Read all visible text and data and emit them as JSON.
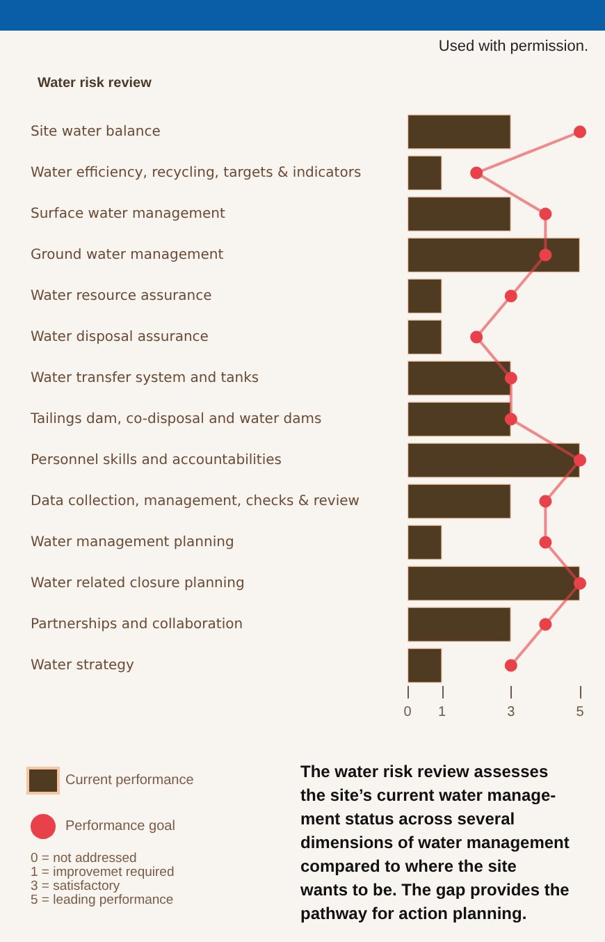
{
  "chart_data": {
    "type": "bar",
    "orientation": "horizontal",
    "title": "Water risk review",
    "categories": [
      "Site water balance",
      "Water efficiency, recycling, targets & indicators",
      "Surface water management",
      "Ground water management",
      "Water resource assurance",
      "Water disposal assurance",
      "Water transfer system and tanks",
      "Tailings dam, co-disposal and water dams",
      "Personnel skills and accountabilities",
      "Data collection, management, checks & review",
      "Water management planning",
      "Water related closure planning",
      "Partnerships and collaboration",
      "Water strategy"
    ],
    "series": [
      {
        "name": "Current performance",
        "color": "#4f3a22",
        "values": [
          3,
          1,
          3,
          5,
          1,
          1,
          3,
          3,
          5,
          3,
          1,
          5,
          3,
          1
        ]
      },
      {
        "name": "Performance goal",
        "type": "line",
        "color": "#e8414a",
        "values": [
          5,
          2,
          4,
          4,
          3,
          2,
          3,
          3,
          5,
          4,
          4,
          5,
          4,
          3
        ]
      }
    ],
    "xlim": [
      0,
      5
    ],
    "xticks": [
      0,
      1,
      3,
      5
    ],
    "grid": false,
    "legend": "bottom left",
    "marker": "circle",
    "line_style": "solid",
    "annotations": [
      "Used with permission.",
      "0 = not addressed\n1 = improvemet required\n3 = satisfactory\n5 = leading performance",
      "The water risk review assesses\nthe site’s current water manage-\nment status across several\ndimensions of water management\ncompared to where the site\nwants to be. The gap provides the\npathway for action planning."
    ]
  }
}
